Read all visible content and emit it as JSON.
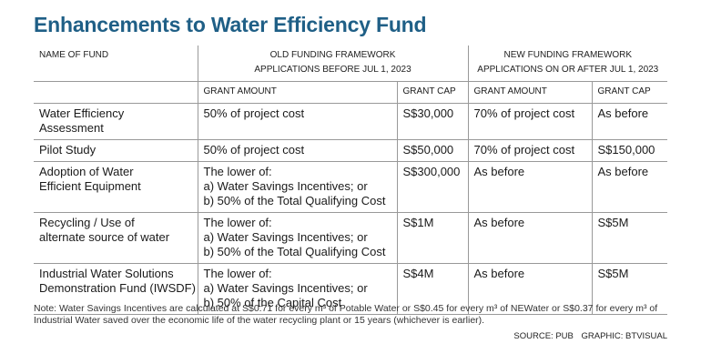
{
  "title": "Enhancements to Water Efficiency Fund",
  "header": {
    "name_of_fund": "NAME OF FUND",
    "old_framework": [
      "OLD FUNDING FRAMEWORK",
      "APPLICATIONS BEFORE JUL 1, 2023"
    ],
    "new_framework": [
      "NEW FUNDING FRAMEWORK",
      "APPLICATIONS ON OR AFTER JUL 1, 2023"
    ],
    "grant_amount": "GRANT AMOUNT",
    "grant_cap": "GRANT CAP"
  },
  "rows": [
    {
      "name": [
        "Water Efficiency",
        "Assessment"
      ],
      "old_amount": [
        "50% of project cost"
      ],
      "old_cap": "S$30,000",
      "new_amount": "70% of project cost",
      "new_cap": "As before"
    },
    {
      "name": [
        "Pilot Study"
      ],
      "old_amount": [
        "50% of project cost"
      ],
      "old_cap": "S$50,000",
      "new_amount": "70% of project cost",
      "new_cap": "S$150,000"
    },
    {
      "name": [
        "Adoption of Water",
        "Efficient Equipment"
      ],
      "old_amount": [
        "The lower of:",
        "a) Water Savings Incentives; or",
        "b) 50% of the Total Qualifying Cost"
      ],
      "old_cap": "S$300,000",
      "new_amount": "As before",
      "new_cap": "As before"
    },
    {
      "name": [
        "Recycling / Use of",
        "alternate source of water"
      ],
      "old_amount": [
        "The lower of:",
        "a) Water Savings Incentives; or",
        "b) 50% of the Total Qualifying Cost"
      ],
      "old_cap": "S$1M",
      "new_amount": "As before",
      "new_cap": "S$5M"
    },
    {
      "name": [
        "Industrial Water Solutions",
        "Demonstration Fund (IWSDF)"
      ],
      "old_amount": [
        "The lower of:",
        "a) Water Savings Incentives; or",
        "b) 50% of the Capital Cost"
      ],
      "old_cap": "S$4M",
      "new_amount": "As before",
      "new_cap": "S$5M"
    }
  ],
  "note": "Note: Water Savings Incentives are calculated at S$0.71 for every m³ of Potable Water or S$0.45 for every m³ of NEWater or S$0.37 for every m³ of Industrial Water saved over the economic life of the water recycling plant or 15 years (whichever is earlier).",
  "source": "SOURCE: PUB",
  "graphic": "GRAPHIC: BTVISUAL"
}
